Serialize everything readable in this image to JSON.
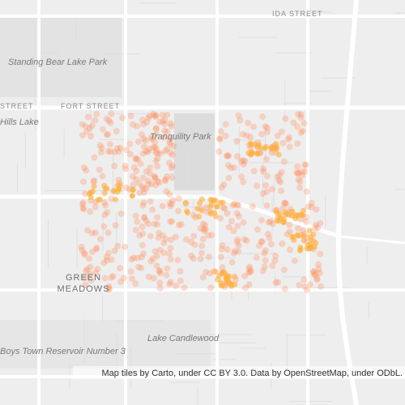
{
  "labels": {
    "ida_street": "IDA STREET",
    "standing_bear": "Standing Bear Lake Park",
    "street_left": "STREET",
    "fort_street": "FORT STREET",
    "hills_lake": "Hills Lake",
    "tranquility": "Tranquility Park",
    "green": "GREEN",
    "meadows": "MEADOWS",
    "candlewood": "Lake Candlewood",
    "boys_town": "Boys Town Reservoir Number 3"
  },
  "attribution": "Map tiles by Carto, under CC BY 3.0. Data by OpenStreetMap, under ODbL."
}
